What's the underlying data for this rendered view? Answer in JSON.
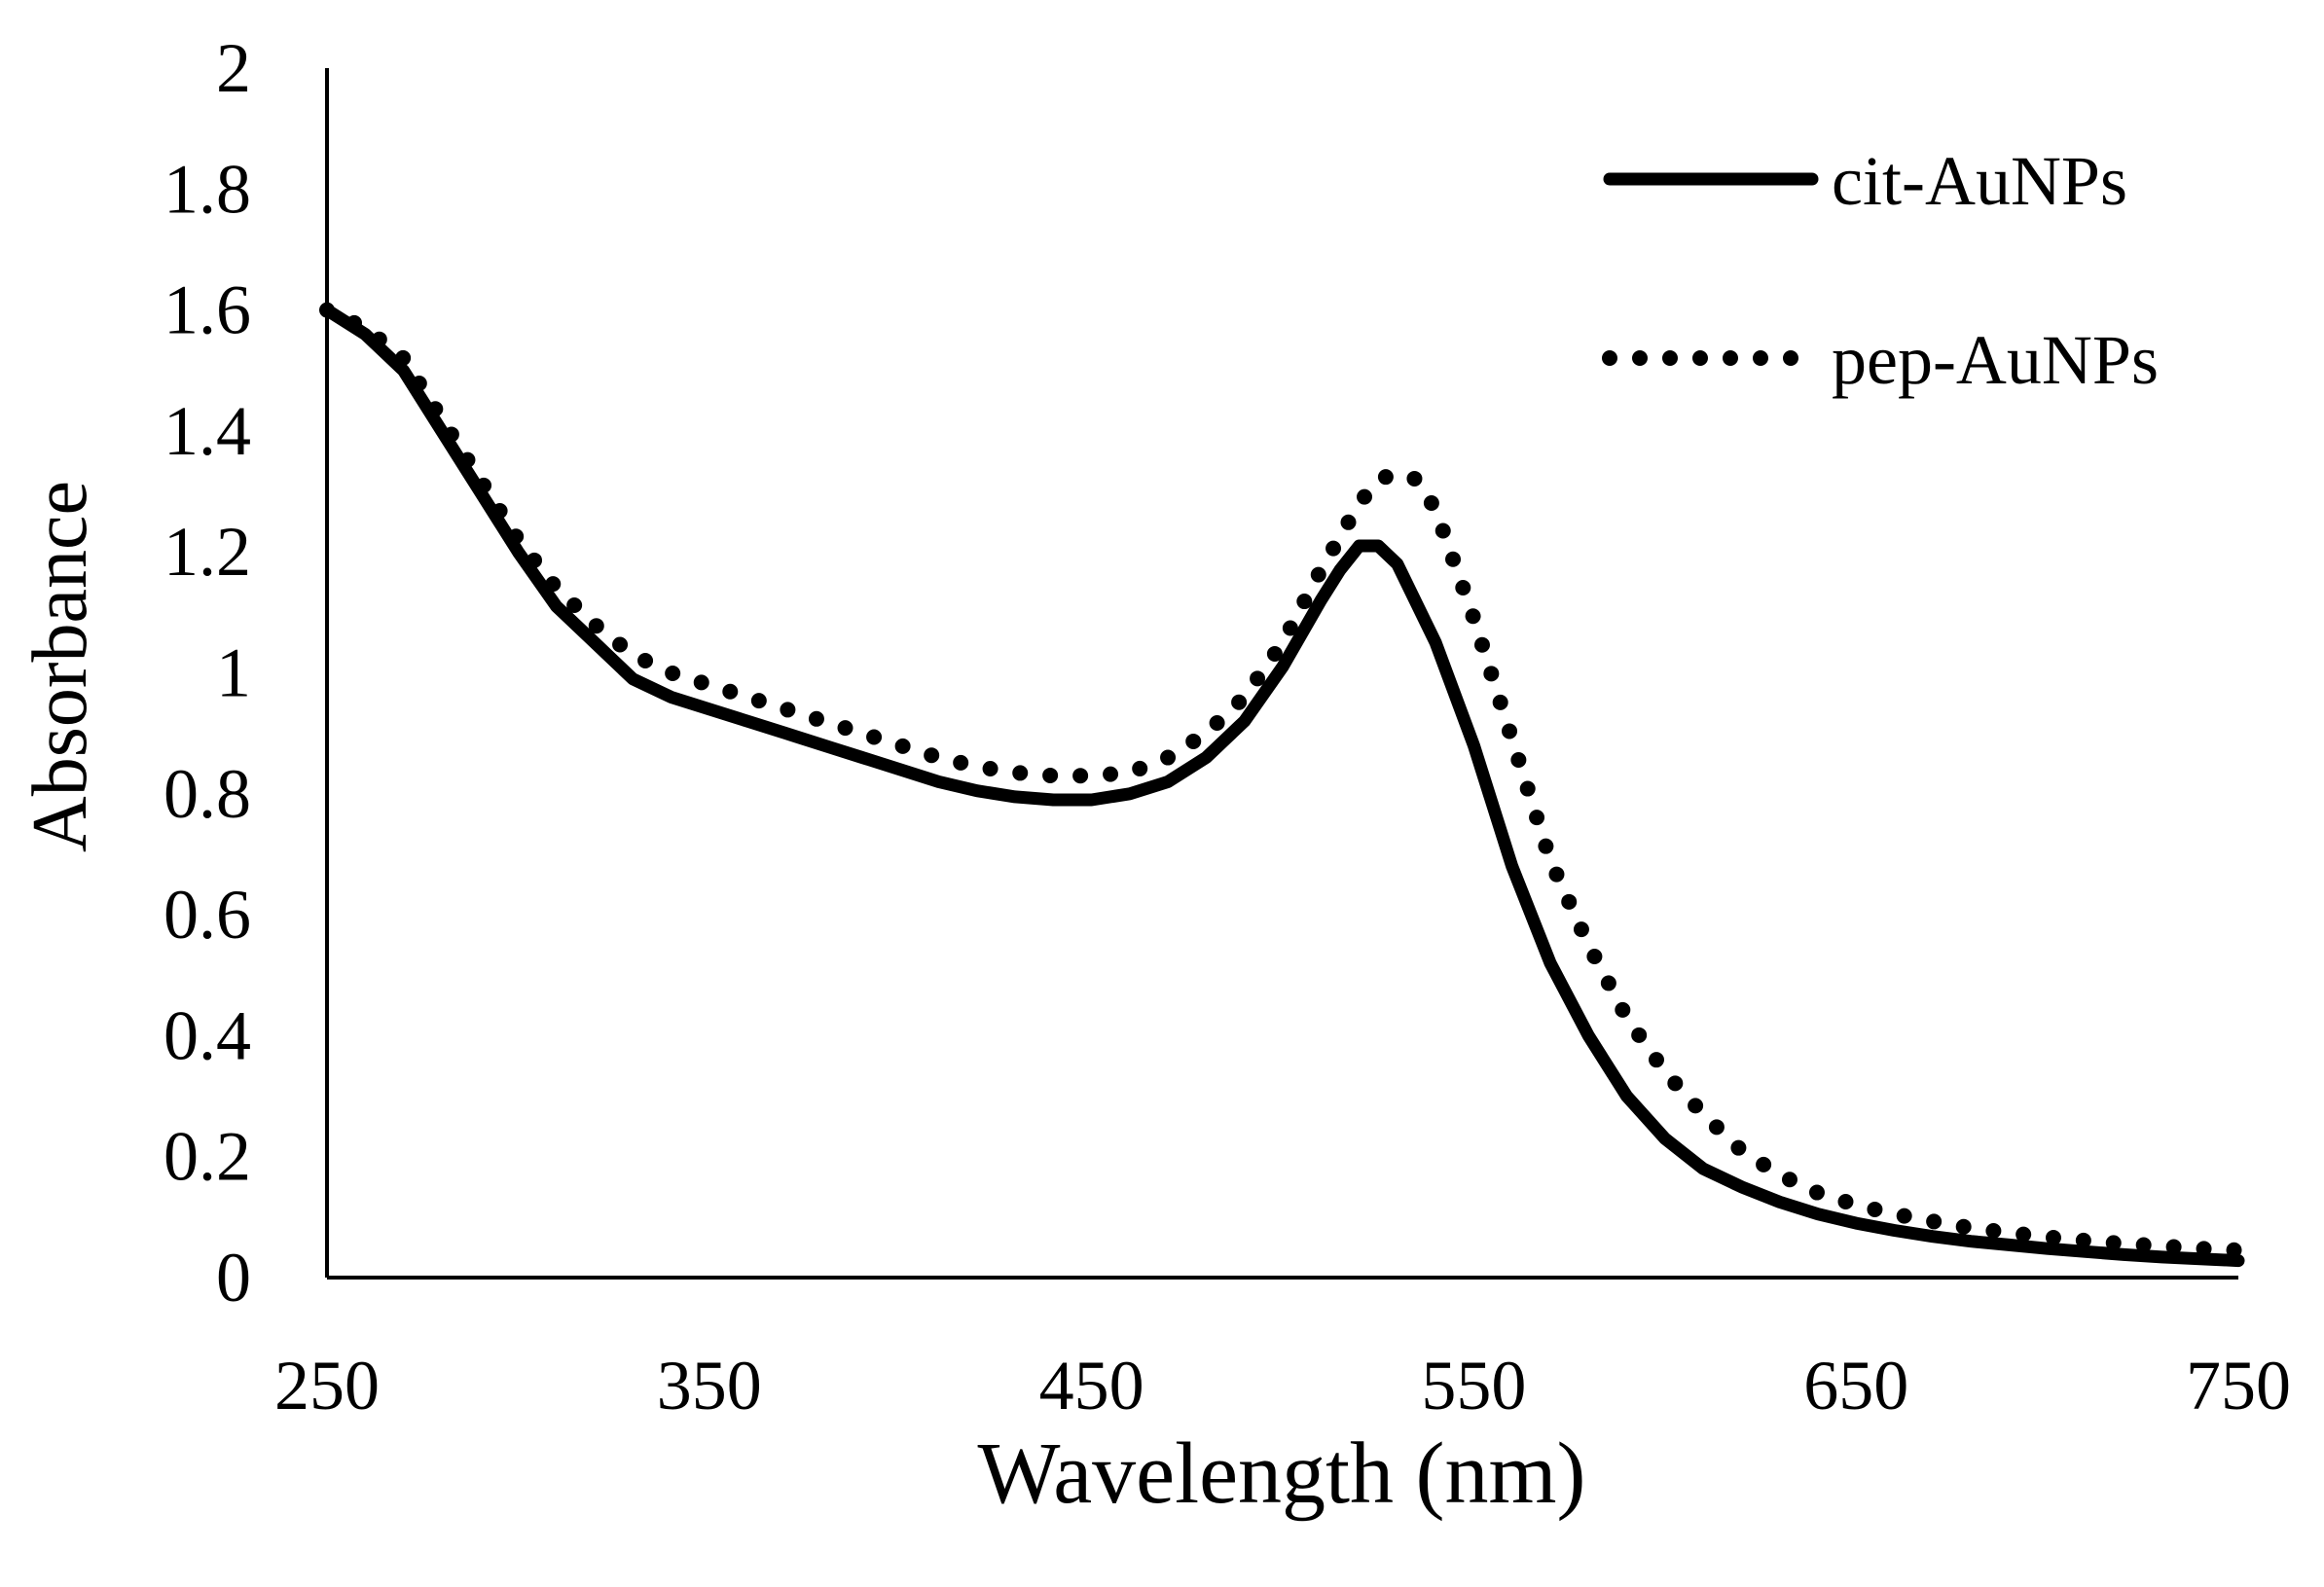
{
  "chart_data": {
    "type": "line",
    "title": "",
    "xlabel": "Wavelength (nm)",
    "ylabel": "Absorbance",
    "xlim": [
      250,
      750
    ],
    "ylim": [
      0,
      2
    ],
    "xticks": [
      250,
      350,
      450,
      550,
      650,
      750
    ],
    "xtick_labels": [
      "250",
      "350",
      "450",
      "550",
      "650",
      "750"
    ],
    "yticks": [
      0,
      0.2,
      0.4,
      0.6,
      0.8,
      1,
      1.2,
      1.4,
      1.6,
      1.8,
      2
    ],
    "ytick_labels": [
      "0",
      "0.2",
      "0.4",
      "0.6",
      "0.8",
      "1",
      "1.2",
      "1.4",
      "1.6",
      "1.8",
      "2"
    ],
    "grid": false,
    "legend_position": "top-right",
    "series": [
      {
        "name": "cit-AuNPs",
        "style": "solid",
        "color": "#000000",
        "x": [
          250,
          260,
          270,
          280,
          290,
          300,
          310,
          320,
          330,
          340,
          350,
          360,
          370,
          380,
          390,
          400,
          410,
          420,
          430,
          440,
          450,
          460,
          470,
          480,
          490,
          500,
          510,
          515,
          520,
          525,
          530,
          540,
          550,
          560,
          570,
          580,
          590,
          600,
          610,
          620,
          630,
          640,
          650,
          660,
          670,
          680,
          690,
          700,
          710,
          720,
          730,
          740,
          750
        ],
        "y": [
          1.6,
          1.56,
          1.5,
          1.4,
          1.3,
          1.2,
          1.11,
          1.05,
          0.99,
          0.96,
          0.94,
          0.92,
          0.9,
          0.88,
          0.86,
          0.84,
          0.82,
          0.805,
          0.795,
          0.79,
          0.79,
          0.8,
          0.82,
          0.86,
          0.92,
          1.01,
          1.12,
          1.17,
          1.21,
          1.21,
          1.18,
          1.05,
          0.88,
          0.68,
          0.52,
          0.4,
          0.3,
          0.23,
          0.18,
          0.15,
          0.125,
          0.105,
          0.09,
          0.078,
          0.068,
          0.06,
          0.054,
          0.048,
          0.043,
          0.038,
          0.034,
          0.031,
          0.028
        ]
      },
      {
        "name": "pep-AuNPs",
        "style": "dotted",
        "color": "#000000",
        "x": [
          250,
          260,
          270,
          280,
          290,
          300,
          310,
          320,
          330,
          340,
          350,
          360,
          370,
          380,
          390,
          400,
          410,
          420,
          430,
          440,
          450,
          460,
          470,
          480,
          490,
          500,
          510,
          520,
          525,
          530,
          535,
          540,
          550,
          560,
          570,
          580,
          590,
          600,
          610,
          620,
          630,
          640,
          650,
          660,
          670,
          680,
          690,
          700,
          710,
          720,
          730,
          740,
          750
        ],
        "y": [
          1.6,
          1.57,
          1.52,
          1.42,
          1.32,
          1.22,
          1.14,
          1.08,
          1.03,
          1.0,
          0.98,
          0.96,
          0.94,
          0.92,
          0.9,
          0.88,
          0.86,
          0.845,
          0.835,
          0.83,
          0.83,
          0.835,
          0.86,
          0.9,
          0.96,
          1.05,
          1.17,
          1.28,
          1.32,
          1.33,
          1.32,
          1.27,
          1.09,
          0.89,
          0.69,
          0.55,
          0.43,
          0.34,
          0.27,
          0.21,
          0.17,
          0.14,
          0.12,
          0.105,
          0.093,
          0.082,
          0.074,
          0.067,
          0.061,
          0.056,
          0.052,
          0.048,
          0.045
        ]
      }
    ]
  }
}
